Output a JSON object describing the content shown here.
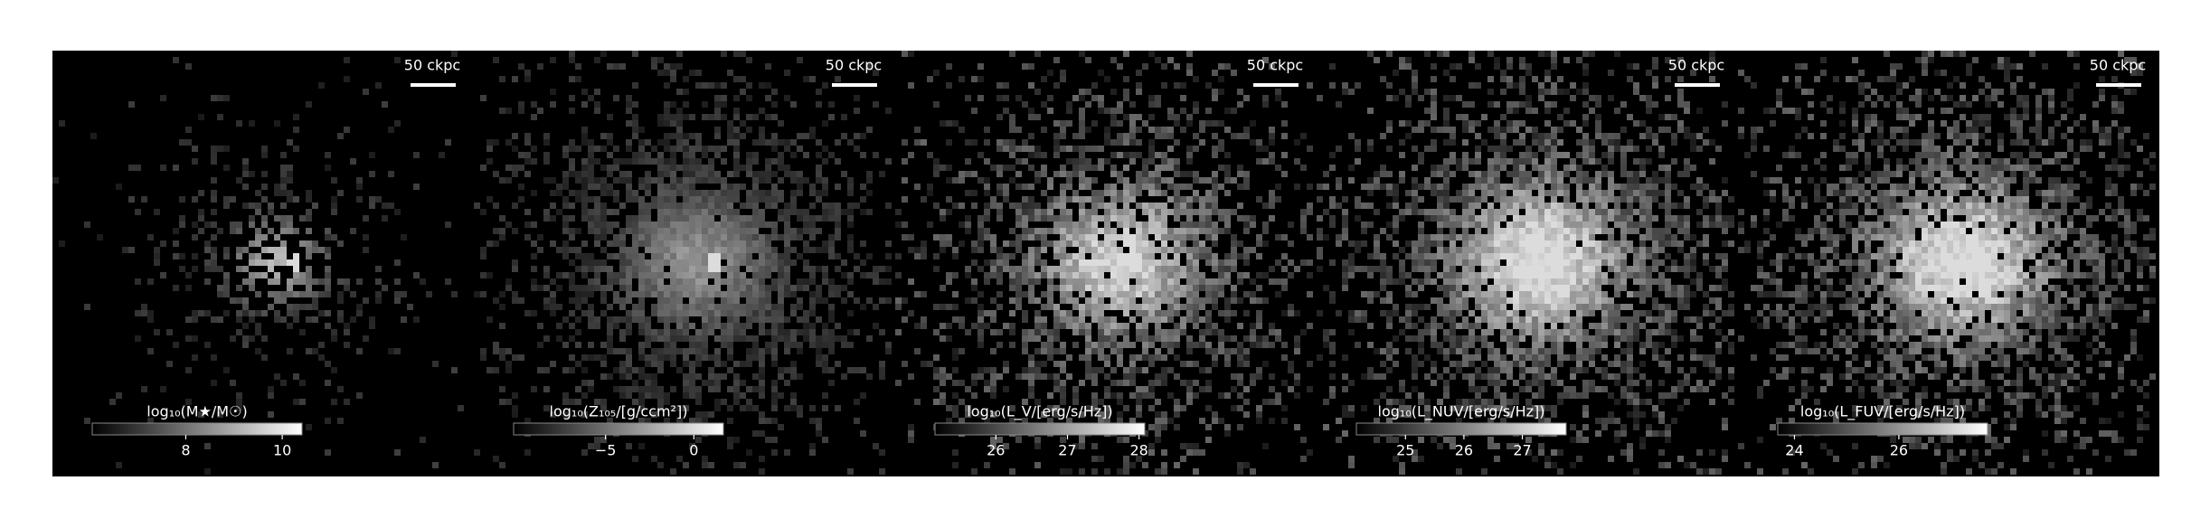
{
  "chart_data": [
    {
      "type": "image",
      "scale_bar": "50 ckpc",
      "colorbar_label": "log₁₀(M★/M☉)",
      "clim": [
        6.06,
        10.41
      ],
      "cticks": [
        8,
        10
      ]
    },
    {
      "type": "image",
      "scale_bar": "50 ckpc",
      "colorbar_label": "log₁₀(Z₁₀₅/[g/ccm²])",
      "clim": [
        -10.2,
        1.67
      ],
      "cticks": [
        {
          "value": -5,
          "label": "−5"
        },
        0
      ]
    },
    {
      "type": "image",
      "scale_bar": "50 ckpc",
      "colorbar_label": "log₁₀(L_V/[erg/s/Hz])",
      "clim": [
        25.15,
        28.08
      ],
      "cticks": [
        26,
        27,
        28
      ]
    },
    {
      "type": "image",
      "scale_bar": "50 ckpc",
      "colorbar_label": "log₁₀(L_NUV/[erg/s/Hz])",
      "clim": [
        24.16,
        27.75
      ],
      "cticks": [
        25,
        26,
        27
      ]
    },
    {
      "type": "image",
      "scale_bar": "50 ckpc",
      "colorbar_label": "log₁₀(L_FUV/[erg/s/Hz])",
      "clim": [
        23.68,
        27.7
      ],
      "cticks": [
        24,
        26
      ]
    }
  ]
}
